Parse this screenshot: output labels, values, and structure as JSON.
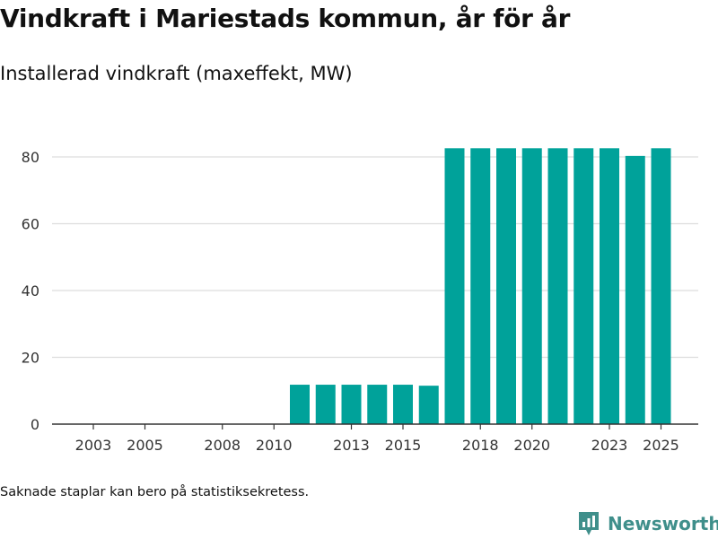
{
  "header": {
    "title": "Vindkraft i Mariestads kommun, år för år",
    "subtitle": "Installerad vindkraft (maxeffekt, MW)"
  },
  "footer": {
    "note": "Saknade staplar kan bero på statistiksekretess.",
    "brand": "Newsworthy"
  },
  "colors": {
    "bar": "#00a29a",
    "grid": "#dddddd",
    "axis": "#333333",
    "brand": "#3f8f8b"
  },
  "chart_data": {
    "type": "bar",
    "title": "Vindkraft i Mariestads kommun, år för år",
    "subtitle": "Installerad vindkraft (maxeffekt, MW)",
    "xlabel": "",
    "ylabel": "",
    "categories": [
      "2003",
      "2004",
      "2005",
      "2006",
      "2007",
      "2008",
      "2009",
      "2010",
      "2011",
      "2012",
      "2013",
      "2014",
      "2015",
      "2016",
      "2017",
      "2018",
      "2019",
      "2020",
      "2021",
      "2022",
      "2023",
      "2024",
      "2025"
    ],
    "values": [
      0,
      0,
      0,
      0,
      0,
      0,
      0,
      0,
      11.8,
      11.8,
      11.8,
      11.8,
      11.8,
      11.5,
      82.6,
      82.6,
      82.6,
      82.6,
      82.6,
      82.6,
      82.6,
      80.3,
      82.6
    ],
    "x_tick_labels": [
      "2003",
      "2005",
      "2008",
      "2010",
      "2013",
      "2015",
      "2018",
      "2020",
      "2023",
      "2025"
    ],
    "y_ticks": [
      0,
      20,
      40,
      60,
      80
    ],
    "ylim": [
      0,
      85
    ],
    "grid": true,
    "legend": "none"
  }
}
